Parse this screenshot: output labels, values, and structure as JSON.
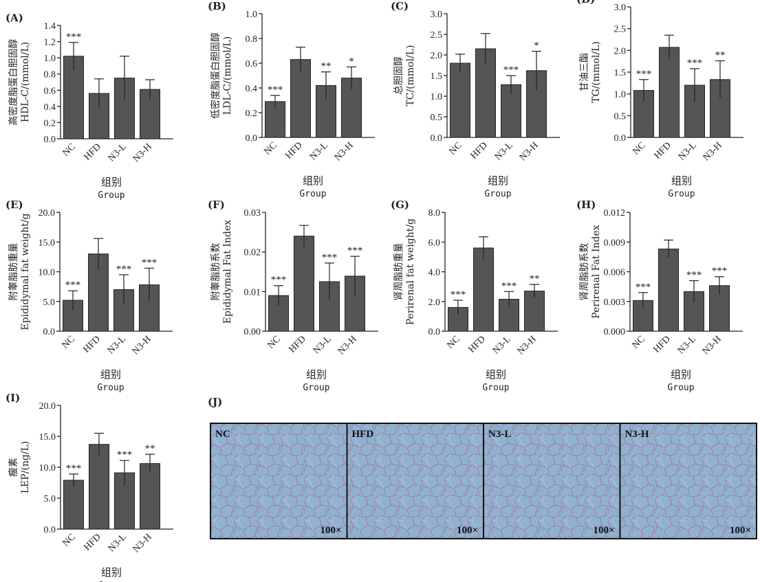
{
  "chart_data": [
    {
      "panel": "(A)",
      "type": "bar",
      "categories": [
        "NC",
        "HFD",
        "N3-L",
        "N3-H"
      ],
      "values": [
        1.02,
        0.56,
        0.75,
        0.61
      ],
      "errors": [
        0.17,
        0.18,
        0.27,
        0.12
      ],
      "significance": [
        "***",
        "",
        "",
        ""
      ],
      "ylabel_cn": "高密度脂蛋白胆固醇",
      "ylabel_en": "HDL-C/(mmol/L)",
      "ylim": [
        0,
        1.4
      ],
      "yticks": [
        "0.0",
        "0.2",
        "0.4",
        "0.6",
        "0.8",
        "1.0",
        "1.2",
        "1.4"
      ],
      "xlabel_cn": "组别",
      "xlabel_en": "Group"
    },
    {
      "panel": "(B)",
      "type": "bar",
      "categories": [
        "NC",
        "HFD",
        "N3-L",
        "N3-H"
      ],
      "values": [
        0.29,
        0.63,
        0.42,
        0.48
      ],
      "errors": [
        0.05,
        0.1,
        0.11,
        0.09
      ],
      "significance": [
        "***",
        "",
        "**",
        "*"
      ],
      "ylabel_cn": "低密度脂蛋白胆固醇",
      "ylabel_en": "LDL-C/(mmol/L)",
      "ylim": [
        0,
        1.0
      ],
      "yticks": [
        "0.0",
        "0.2",
        "0.4",
        "0.6",
        "0.8",
        "1.0"
      ],
      "xlabel_cn": "组别",
      "xlabel_en": "Group"
    },
    {
      "panel": "(C)",
      "type": "bar",
      "categories": [
        "NC",
        "HFD",
        "N3-L",
        "N3-H"
      ],
      "values": [
        1.8,
        2.15,
        1.28,
        1.62
      ],
      "errors": [
        0.22,
        0.37,
        0.22,
        0.47
      ],
      "significance": [
        "",
        "",
        "***",
        "*"
      ],
      "ylabel_cn": "总胆固醇",
      "ylabel_en": "TC/(mmol/L)",
      "ylim": [
        0,
        3.0
      ],
      "yticks": [
        "0.0",
        "0.5",
        "1.0",
        "1.5",
        "2.0",
        "2.5",
        "3.0"
      ],
      "xlabel_cn": "组别",
      "xlabel_en": "Group"
    },
    {
      "panel": "(D)",
      "type": "bar",
      "categories": [
        "NC",
        "HFD",
        "N3-L",
        "N3-H"
      ],
      "values": [
        1.08,
        2.07,
        1.2,
        1.33
      ],
      "errors": [
        0.25,
        0.28,
        0.38,
        0.43
      ],
      "significance": [
        "***",
        "",
        "***",
        "**"
      ],
      "ylabel_cn": "甘油三酯",
      "ylabel_en": "TG/(mmol/L)",
      "ylim": [
        0,
        3.0
      ],
      "yticks": [
        "0.0",
        "0.5",
        "1.0",
        "1.5",
        "2.0",
        "2.5",
        "3.0"
      ],
      "xlabel_cn": "组别",
      "xlabel_en": "Group"
    },
    {
      "panel": "(E)",
      "type": "bar",
      "categories": [
        "NC",
        "HFD",
        "N3-L",
        "N3-H"
      ],
      "values": [
        5.2,
        13.0,
        7.0,
        7.8
      ],
      "errors": [
        1.6,
        2.6,
        2.5,
        2.8
      ],
      "significance": [
        "***",
        "",
        "***",
        "***"
      ],
      "ylabel_cn": "附睾脂肪重量",
      "ylabel_en": "Epididymal fat weight/g",
      "ylim": [
        0,
        20
      ],
      "yticks": [
        "0.0",
        "5.0",
        "10.0",
        "15.0",
        "20.0"
      ],
      "xlabel_cn": "组别",
      "xlabel_en": "Group"
    },
    {
      "panel": "(F)",
      "type": "bar",
      "categories": [
        "NC",
        "HFD",
        "N3-L",
        "N3-H"
      ],
      "values": [
        0.009,
        0.024,
        0.0125,
        0.0139
      ],
      "errors": [
        0.0025,
        0.0027,
        0.0047,
        0.005
      ],
      "significance": [
        "***",
        "",
        "***",
        "***"
      ],
      "ylabel_cn": "附睾脂肪系数",
      "ylabel_en": "Epididymal Fat Index",
      "ylim": [
        0,
        0.03
      ],
      "yticks": [
        "0.00",
        "0.01",
        "0.02",
        "0.03"
      ],
      "xlabel_cn": "组别",
      "xlabel_en": "Group"
    },
    {
      "panel": "(G)",
      "type": "bar",
      "categories": [
        "NC",
        "HFD",
        "N3-L",
        "N3-H"
      ],
      "values": [
        1.6,
        5.6,
        2.15,
        2.7
      ],
      "errors": [
        0.48,
        0.75,
        0.52,
        0.45
      ],
      "significance": [
        "***",
        "",
        "***",
        "**"
      ],
      "ylabel_cn": "肾周脂肪重量",
      "ylabel_en": "Perirenal fat weight/g",
      "ylim": [
        0,
        8.0
      ],
      "yticks": [
        "0.0",
        "2.0",
        "4.0",
        "6.0",
        "8.0"
      ],
      "xlabel_cn": "组别",
      "xlabel_en": "Group"
    },
    {
      "panel": "(H)",
      "type": "bar",
      "categories": [
        "NC",
        "HFD",
        "N3-L",
        "N3-H"
      ],
      "values": [
        0.0031,
        0.0083,
        0.004,
        0.0046
      ],
      "errors": [
        0.0008,
        0.0009,
        0.0011,
        0.0009
      ],
      "significance": [
        "***",
        "",
        "***",
        "***"
      ],
      "ylabel_cn": "肾周脂肪系数",
      "ylabel_en": "Perirenal Fat Index",
      "ylim": [
        0,
        0.012
      ],
      "yticks": [
        "0.000",
        "0.003",
        "0.006",
        "0.009",
        "0.012"
      ],
      "xlabel_cn": "组别",
      "xlabel_en": "Group"
    },
    {
      "panel": "(I)",
      "type": "bar",
      "categories": [
        "NC",
        "HFD",
        "N3-L",
        "N3-H"
      ],
      "values": [
        7.9,
        13.7,
        9.1,
        10.6
      ],
      "errors": [
        1.0,
        1.8,
        2.0,
        1.5
      ],
      "significance": [
        "***",
        "",
        "***",
        "**"
      ],
      "ylabel_cn": "瘦素",
      "ylabel_en": "LEP/(ng/L)",
      "ylim": [
        0,
        20
      ],
      "yticks": [
        "0.0",
        "5.0",
        "10.0",
        "15.0",
        "20.0"
      ],
      "xlabel_cn": "组别",
      "xlabel_en": "Group"
    }
  ],
  "histology": {
    "panel": "(J)",
    "groups": [
      "NC",
      "HFD",
      "N3-L",
      "N3-H"
    ],
    "magnification": "100×",
    "stain_background": "#8db1cf",
    "stain_membrane": "#b04a78"
  }
}
